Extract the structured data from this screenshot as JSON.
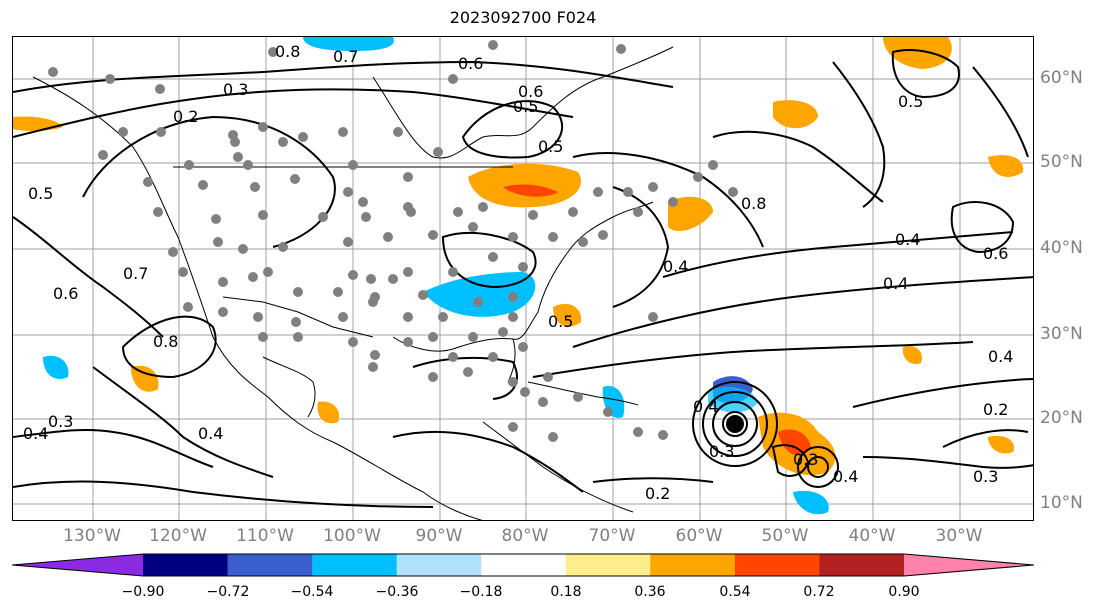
{
  "title": "2023092700 F024",
  "map": {
    "lon_labels": [
      "130°W",
      "120°W",
      "110°W",
      "100°W",
      "90°W",
      "80°W",
      "70°W",
      "60°W",
      "50°W",
      "40°W",
      "30°W"
    ],
    "lat_labels": [
      "60°N",
      "50°N",
      "40°N",
      "30°N",
      "20°N",
      "10°N"
    ],
    "contour_labels": [
      "0.8",
      "0.7",
      "0.6",
      "0.3",
      "0.2",
      "0.6",
      "0.5",
      "0.5",
      "0.4",
      "0.8",
      "0.5",
      "0.4",
      "0.6",
      "0.4",
      "0.6",
      "0.8",
      "0.5",
      "0.3",
      "0.4",
      "0.4",
      "0.3",
      "0.2",
      "0.3",
      "0.4",
      "0.4",
      "0.3",
      "0.2",
      "0.5",
      "0.7",
      "0.4"
    ],
    "storm_marker": "hurricane-center",
    "station_dot_color": "#808080",
    "contour_color": "#000000"
  },
  "colorbar": {
    "tick_labels": [
      "−0.90",
      "−0.72",
      "−0.54",
      "−0.36",
      "−0.18",
      "0.18",
      "0.36",
      "0.54",
      "0.72",
      "0.90"
    ],
    "colors": [
      "#8a2be2",
      "#000080",
      "#3a5fcd",
      "#00bfff",
      "#b0e2ff",
      "#ffffff",
      "#ffec8b",
      "#ffa500",
      "#ff4500",
      "#b22222",
      "#ff82ab"
    ]
  }
}
